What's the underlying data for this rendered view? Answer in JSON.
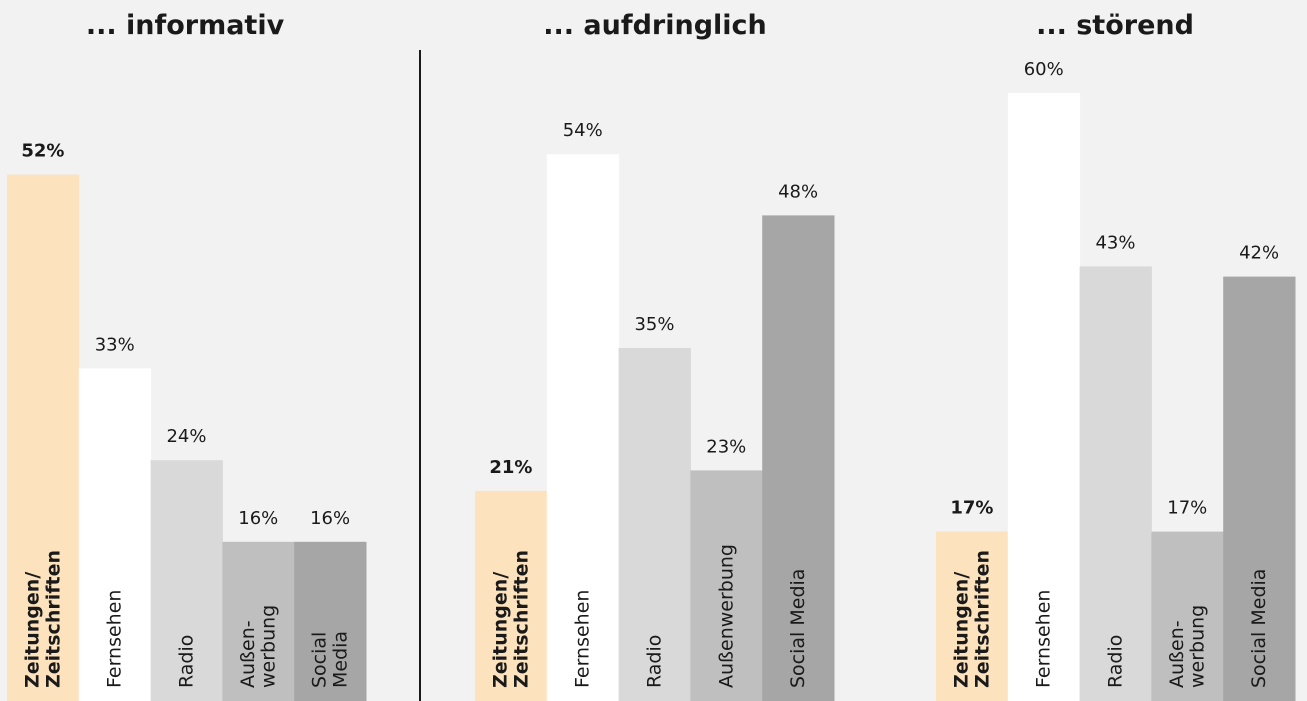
{
  "chart_data": [
    {
      "type": "bar",
      "title": "... informativ",
      "categories": [
        "Zeitungen/\nZeitschriften",
        "Fernsehen",
        "Radio",
        "Außen-\nwerbung",
        "Social\nMedia"
      ],
      "values": [
        52,
        33,
        24,
        16,
        16
      ],
      "value_labels": [
        "52%",
        "33%",
        "24%",
        "16%",
        "16%"
      ],
      "colors": [
        "#fde3bd",
        "#ffffff",
        "#d9d9d9",
        "#bfbfbf",
        "#a6a6a6"
      ]
    },
    {
      "type": "bar",
      "title": "... aufdringlich",
      "categories": [
        "Zeitungen/\nZeitschriften",
        "Fernsehen",
        "Radio",
        "Außenwerbung",
        "Social Media"
      ],
      "values": [
        21,
        54,
        35,
        23,
        48
      ],
      "value_labels": [
        "21%",
        "54%",
        "35%",
        "23%",
        "48%"
      ],
      "colors": [
        "#fde3bd",
        "#ffffff",
        "#d9d9d9",
        "#bfbfbf",
        "#a6a6a6"
      ]
    },
    {
      "type": "bar",
      "title": "... störend",
      "categories": [
        "Zeitungen/\nZeitschriften",
        "Fernsehen",
        "Radio",
        "Außen-\nwerbung",
        "Social Media"
      ],
      "values": [
        17,
        60,
        43,
        17,
        42
      ],
      "value_labels": [
        "17%",
        "60%",
        "43%",
        "17%",
        "42%"
      ],
      "colors": [
        "#fde3bd",
        "#ffffff",
        "#d9d9d9",
        "#bfbfbf",
        "#a6a6a6"
      ]
    }
  ]
}
